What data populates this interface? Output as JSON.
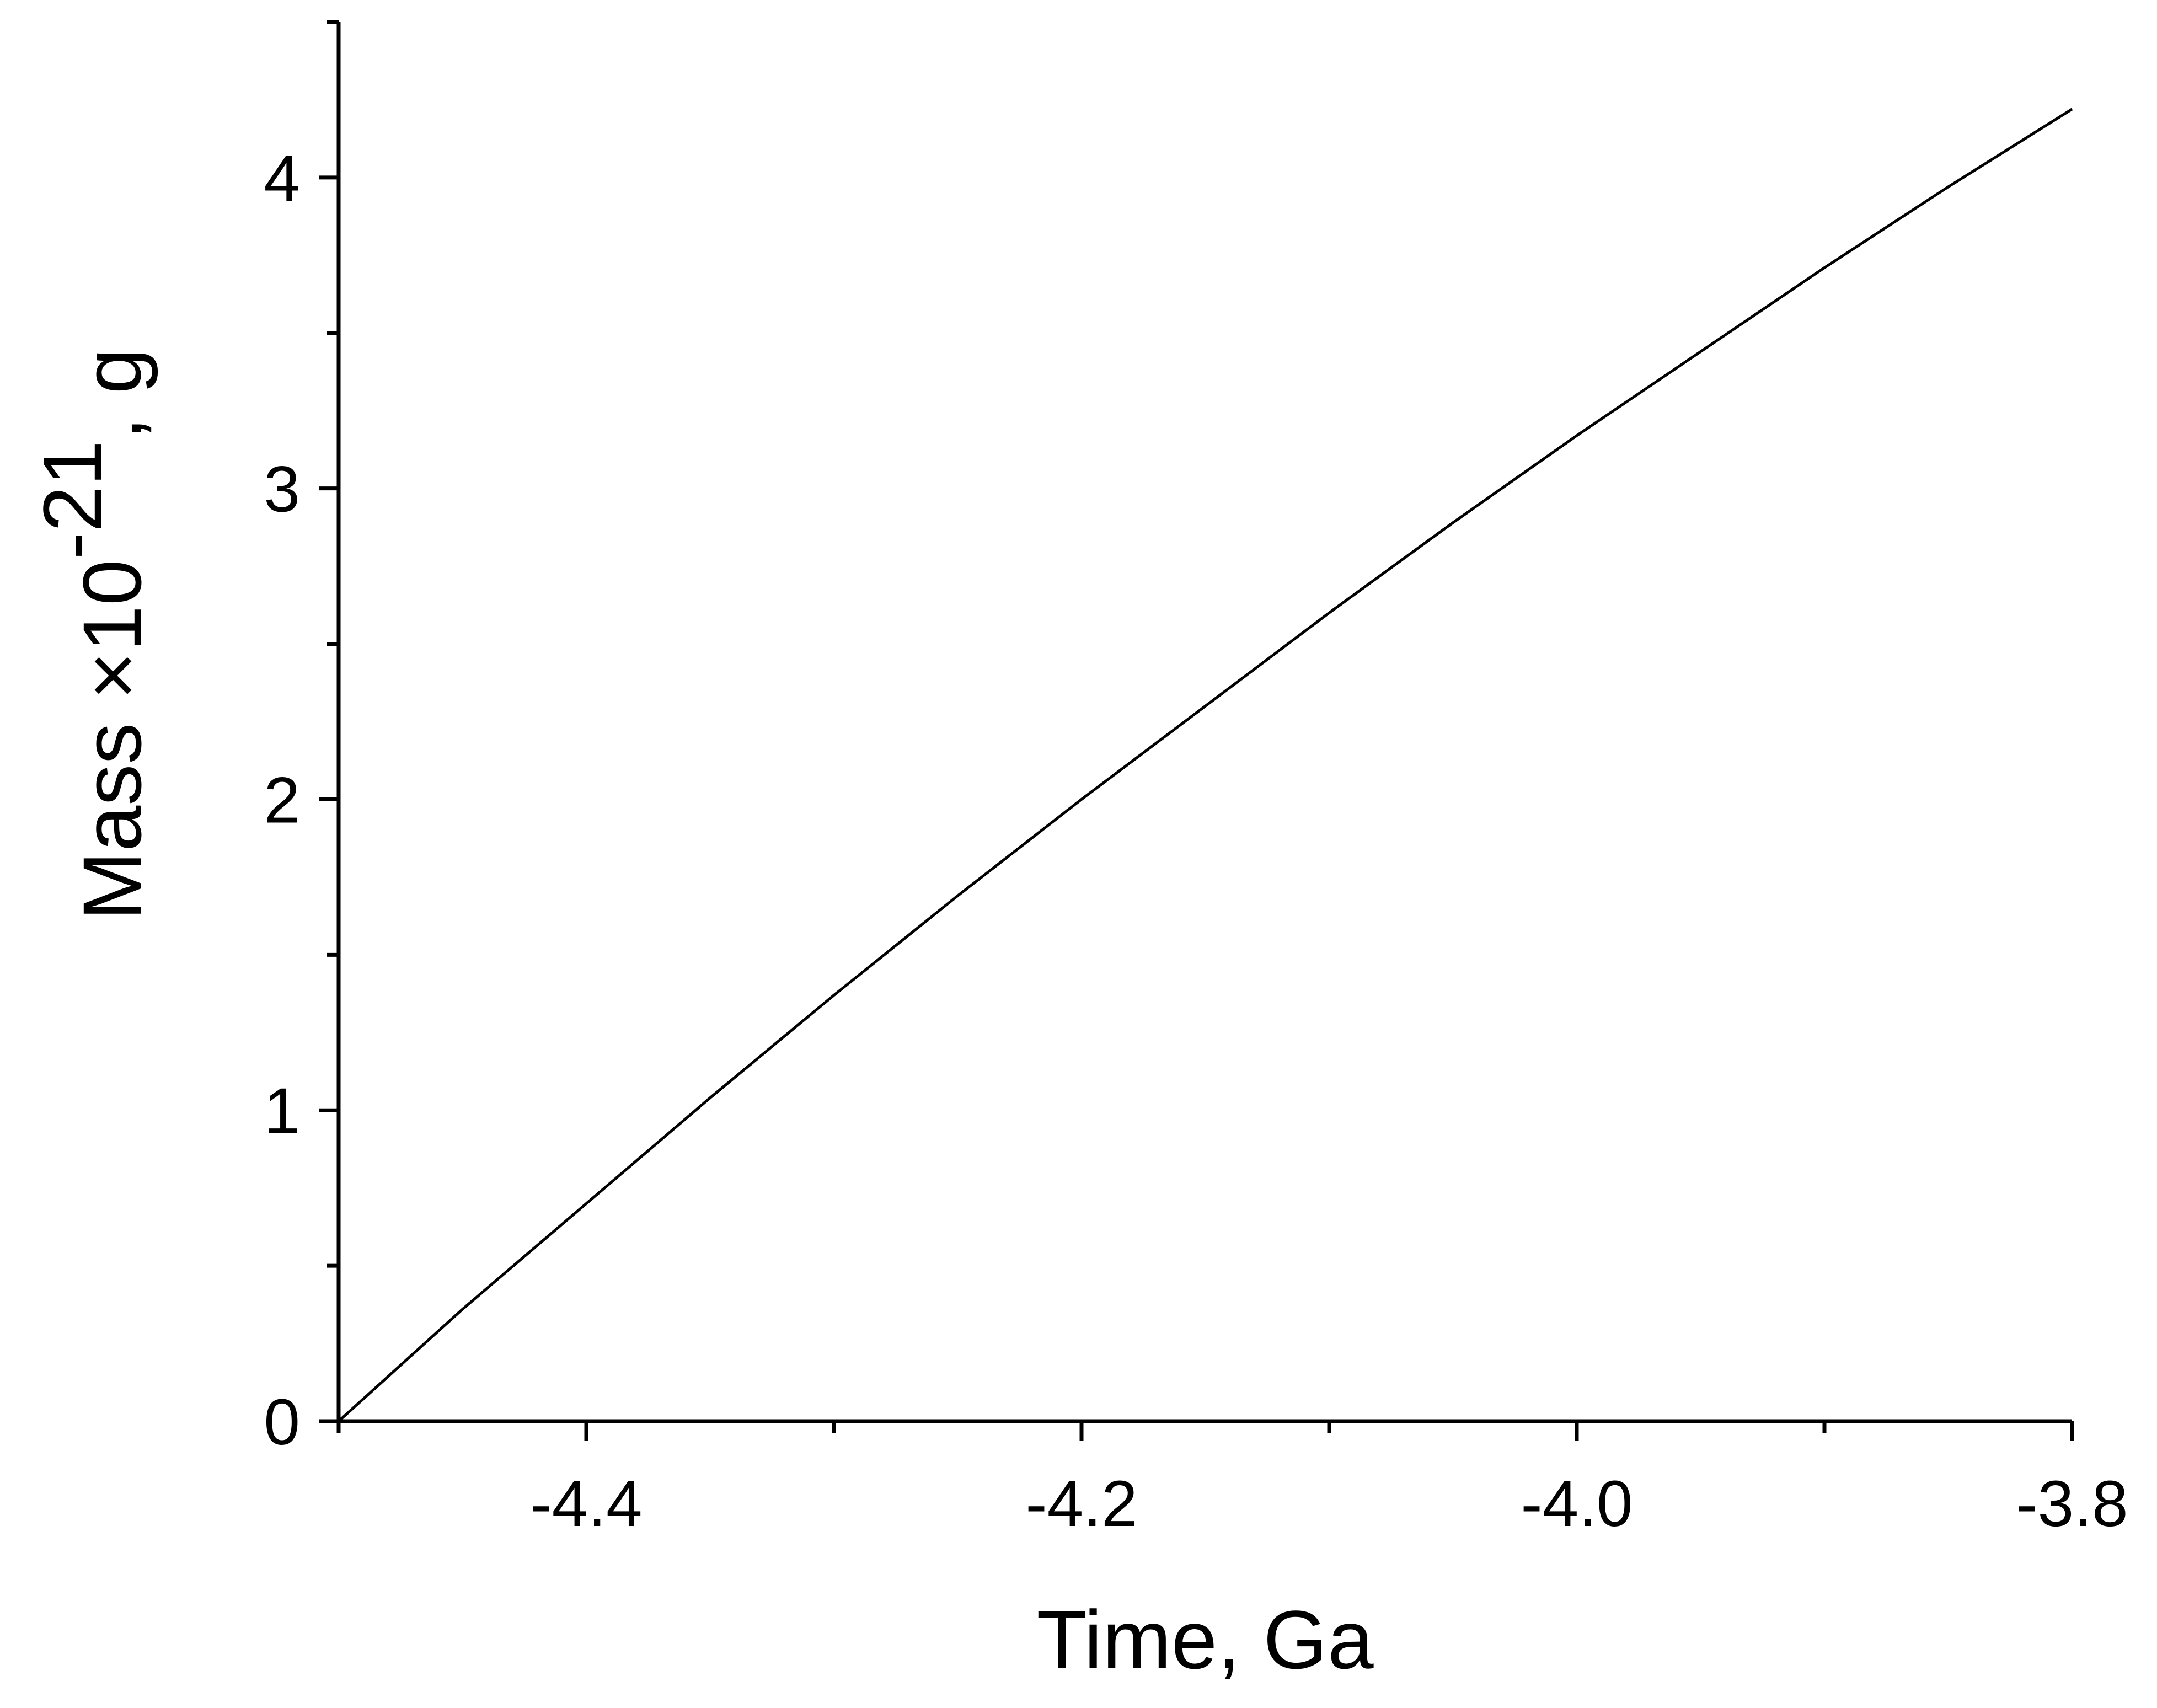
{
  "chart_data": {
    "type": "line",
    "title": "",
    "xlabel": "Time, Ga",
    "ylabel": {
      "main": "Mass ×10",
      "exponent": "-21",
      "unit": ", g"
    },
    "xlim": [
      -4.5,
      -3.8
    ],
    "ylim": [
      0,
      4.5
    ],
    "x_ticks_major": [
      -4.4,
      -4.2,
      -4.0,
      -3.8
    ],
    "x_tick_labels": [
      "-4.4",
      "-4.2",
      "-4.0",
      "-3.8"
    ],
    "x_ticks_minor": [
      -4.5,
      -4.3,
      -4.1,
      -3.9
    ],
    "y_ticks_major": [
      0,
      1,
      2,
      3,
      4
    ],
    "y_tick_labels": [
      "0",
      "1",
      "2",
      "3",
      "4"
    ],
    "y_ticks_minor": [
      0.5,
      1.5,
      2.5,
      3.5,
      4.5
    ],
    "grid": false,
    "series": [
      {
        "color": "#000000",
        "x": [
          -4.5,
          -4.45,
          -4.4,
          -4.35,
          -4.3,
          -4.25,
          -4.2,
          -4.15,
          -4.1,
          -4.05,
          -4.0,
          -3.95,
          -3.9,
          -3.85,
          -3.8
        ],
        "y": [
          0.0,
          0.36,
          0.7,
          1.04,
          1.37,
          1.69,
          2.0,
          2.3,
          2.6,
          2.89,
          3.17,
          3.44,
          3.71,
          3.97,
          4.22
        ]
      }
    ]
  }
}
